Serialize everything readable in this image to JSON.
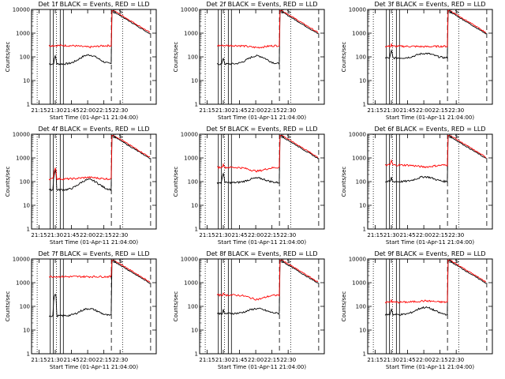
{
  "chart_data": [
    {
      "type": "line",
      "title": "Det 1f BLACK = Events, RED = LLD",
      "xlabel": "Start Time (01-Apr-11 21:04:00)",
      "ylabel": "Counts/sec",
      "ylim": [
        1,
        10000
      ],
      "yscale": "log",
      "xticks": [
        "21:15",
        "21:30",
        "21:45",
        "22:00",
        "22:15",
        "22:30"
      ],
      "yticks": [
        "1",
        "10",
        "100",
        "1000",
        "10000"
      ],
      "annotations": [
        "S",
        "S"
      ],
      "series": [
        {
          "name": "Events",
          "color": "#000000",
          "baseline": 50,
          "hump": 120,
          "spike": 110,
          "flare": 8000
        },
        {
          "name": "LLD",
          "color": "#ff0000",
          "baseline": 300,
          "hump": 260,
          "spike": 280,
          "flare": 9000
        }
      ]
    },
    {
      "type": "line",
      "title": "Det 2f BLACK = Events, RED = LLD",
      "xlabel": "Start Time (01-Apr-11 21:04:00)",
      "ylabel": "Counts/sec",
      "ylim": [
        1,
        10000
      ],
      "yscale": "log",
      "xticks": [
        "21:15",
        "21:30",
        "21:45",
        "22:00",
        "22:15",
        "22:30"
      ],
      "yticks": [
        "1",
        "10",
        "100",
        "1000",
        "10000"
      ],
      "annotations": [
        "S",
        "S"
      ],
      "series": [
        {
          "name": "Events",
          "color": "#000000",
          "baseline": 50,
          "hump": 110,
          "spike": 90,
          "flare": 8000
        },
        {
          "name": "LLD",
          "color": "#ff0000",
          "baseline": 300,
          "hump": 250,
          "spike": 260,
          "flare": 9000
        }
      ]
    },
    {
      "type": "line",
      "title": "Det 3f BLACK = Events, RED = LLD",
      "xlabel": "Start Time (01-Apr-11 21:04:00)",
      "ylabel": "Counts/sec",
      "ylim": [
        1,
        10000
      ],
      "yscale": "log",
      "xticks": [
        "21:15",
        "21:30",
        "21:45",
        "22:00",
        "22:15",
        "22:30"
      ],
      "yticks": [
        "1",
        "10",
        "100",
        "1000",
        "10000"
      ],
      "annotations": [
        "S",
        "S"
      ],
      "series": [
        {
          "name": "Events",
          "color": "#000000",
          "baseline": 90,
          "hump": 140,
          "spike": 180,
          "flare": 8000
        },
        {
          "name": "LLD",
          "color": "#ff0000",
          "baseline": 280,
          "hump": 270,
          "spike": 350,
          "flare": 9000
        }
      ]
    },
    {
      "type": "line",
      "title": "Det 4f BLACK = Events, RED = LLD",
      "xlabel": "Start Time (01-Apr-11 21:04:00)",
      "ylabel": "Counts/sec",
      "ylim": [
        1,
        10000
      ],
      "yscale": "log",
      "xticks": [
        "21:15",
        "21:30",
        "21:45",
        "22:00",
        "22:15",
        "22:30"
      ],
      "yticks": [
        "1",
        "10",
        "100",
        "1000",
        "10000"
      ],
      "annotations": [
        "S",
        "S"
      ],
      "series": [
        {
          "name": "Events",
          "color": "#000000",
          "baseline": 45,
          "hump": 120,
          "spike": 300,
          "flare": 8000
        },
        {
          "name": "LLD",
          "color": "#ff0000",
          "baseline": 130,
          "hump": 150,
          "spike": 400,
          "flare": 9000
        }
      ]
    },
    {
      "type": "line",
      "title": "Det 5f BLACK = Events, RED = LLD",
      "xlabel": "Start Time (01-Apr-11 21:04:00)",
      "ylabel": "Counts/sec",
      "ylim": [
        1,
        10000
      ],
      "yscale": "log",
      "xticks": [
        "21:15",
        "21:30",
        "21:45",
        "22:00",
        "22:15",
        "22:30"
      ],
      "yticks": [
        "1",
        "10",
        "100",
        "1000",
        "10000"
      ],
      "annotations": [
        "S",
        "S"
      ],
      "series": [
        {
          "name": "Events",
          "color": "#000000",
          "baseline": 90,
          "hump": 140,
          "spike": 220,
          "flare": 8000
        },
        {
          "name": "LLD",
          "color": "#ff0000",
          "baseline": 400,
          "hump": 280,
          "spike": 600,
          "flare": 9000
        }
      ]
    },
    {
      "type": "line",
      "title": "Det 6f BLACK = Events, RED = LLD",
      "xlabel": "Start Time (01-Apr-11 21:04:00)",
      "ylabel": "Counts/sec",
      "ylim": [
        1,
        10000
      ],
      "yscale": "log",
      "xticks": [
        "21:15",
        "21:30",
        "21:45",
        "22:00",
        "22:15",
        "22:30"
      ],
      "yticks": [
        "1",
        "10",
        "100",
        "1000",
        "10000"
      ],
      "annotations": [
        "S",
        "S"
      ],
      "series": [
        {
          "name": "Events",
          "color": "#000000",
          "baseline": 100,
          "hump": 160,
          "spike": 150,
          "flare": 8000
        },
        {
          "name": "LLD",
          "color": "#ff0000",
          "baseline": 500,
          "hump": 420,
          "spike": 800,
          "flare": 9000
        }
      ]
    },
    {
      "type": "line",
      "title": "Det 7f BLACK = Events, RED = LLD",
      "xlabel": "Start Time (01-Apr-11 21:04:00)",
      "ylabel": "Counts/sec",
      "ylim": [
        1,
        10000
      ],
      "yscale": "log",
      "xticks": [
        "21:15",
        "21:30",
        "21:45",
        "22:00",
        "22:15",
        "22:30"
      ],
      "yticks": [
        "1",
        "10",
        "100",
        "1000",
        "10000"
      ],
      "annotations": [
        "S",
        "S"
      ],
      "series": [
        {
          "name": "Events",
          "color": "#000000",
          "baseline": 40,
          "hump": 80,
          "spike": 350,
          "flare": 8000
        },
        {
          "name": "LLD",
          "color": "#ff0000",
          "baseline": 1800,
          "hump": 1800,
          "spike": 1900,
          "flare": 9000
        }
      ]
    },
    {
      "type": "line",
      "title": "Det 8f BLACK = Events, RED = LLD",
      "xlabel": "Start Time (01-Apr-11 21:04:00)",
      "ylabel": "Counts/sec",
      "ylim": [
        1,
        10000
      ],
      "yscale": "log",
      "xticks": [
        "21:15",
        "21:30",
        "21:45",
        "22:00",
        "22:15",
        "22:30"
      ],
      "yticks": [
        "1",
        "10",
        "100",
        "1000",
        "10000"
      ],
      "annotations": [
        "S",
        "S"
      ],
      "series": [
        {
          "name": "Events",
          "color": "#000000",
          "baseline": 50,
          "hump": 80,
          "spike": 70,
          "flare": 8000
        },
        {
          "name": "LLD",
          "color": "#ff0000",
          "baseline": 300,
          "hump": 200,
          "spike": 400,
          "flare": 9000
        }
      ]
    },
    {
      "type": "line",
      "title": "Det 9f BLACK = Events, RED = LLD",
      "xlabel": "Start Time (01-Apr-11 21:04:00)",
      "ylabel": "Counts/sec",
      "ylim": [
        1,
        10000
      ],
      "yscale": "log",
      "xticks": [
        "21:15",
        "21:30",
        "21:45",
        "22:00",
        "22:15",
        "22:30"
      ],
      "yticks": [
        "1",
        "10",
        "100",
        "1000",
        "10000"
      ],
      "annotations": [
        "S",
        "S"
      ],
      "series": [
        {
          "name": "Events",
          "color": "#000000",
          "baseline": 45,
          "hump": 90,
          "spike": 80,
          "flare": 8000
        },
        {
          "name": "LLD",
          "color": "#ff0000",
          "baseline": 150,
          "hump": 170,
          "spike": 200,
          "flare": 9000
        }
      ]
    }
  ]
}
